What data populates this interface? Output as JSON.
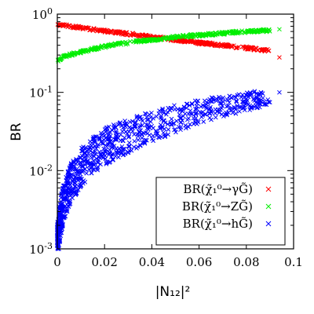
{
  "chart_data": {
    "type": "scatter",
    "xlabel": "|N₁₂|²",
    "ylabel": "BR",
    "xlim": [
      0,
      0.1
    ],
    "ylim": [
      0.001,
      1
    ],
    "yscale": "log",
    "grid": false,
    "legend_placement": "bottom-right",
    "x_ticks": [
      "0",
      "0.02",
      "0.04",
      "0.06",
      "0.08",
      "0.1"
    ],
    "y_ticks": [
      "10-3",
      "10-2",
      "10-1",
      "100"
    ],
    "series": [
      {
        "name": "BR(χ̃₁⁰→γG̃)",
        "color": "#ff0000",
        "marker": "x",
        "band": true,
        "x": [
          0.0005,
          0.002,
          0.005,
          0.01,
          0.015,
          0.02,
          0.025,
          0.03,
          0.035,
          0.04,
          0.045,
          0.05,
          0.055,
          0.06,
          0.065,
          0.07,
          0.075,
          0.08,
          0.085,
          0.09,
          0.094
        ],
        "y": [
          0.74,
          0.72,
          0.7,
          0.67,
          0.64,
          0.61,
          0.585,
          0.56,
          0.535,
          0.51,
          0.49,
          0.47,
          0.45,
          0.43,
          0.415,
          0.4,
          0.385,
          0.37,
          0.355,
          0.34,
          0.28
        ]
      },
      {
        "name": "BR(χ̃₁⁰→ZG̃)",
        "color": "#00ee00",
        "marker": "x",
        "band": true,
        "x": [
          0.0005,
          0.002,
          0.005,
          0.01,
          0.015,
          0.02,
          0.025,
          0.03,
          0.035,
          0.04,
          0.045,
          0.05,
          0.055,
          0.06,
          0.065,
          0.07,
          0.075,
          0.08,
          0.085,
          0.09,
          0.094
        ],
        "y": [
          0.26,
          0.28,
          0.3,
          0.33,
          0.36,
          0.385,
          0.41,
          0.43,
          0.45,
          0.47,
          0.49,
          0.51,
          0.525,
          0.54,
          0.555,
          0.57,
          0.585,
          0.6,
          0.61,
          0.62,
          0.64
        ]
      },
      {
        "name": "BR(χ̃₁⁰→hG̃)",
        "color": "#0000ff",
        "marker": "x",
        "band": true,
        "x": [
          0.0003,
          0.001,
          0.002,
          0.004,
          0.006,
          0.008,
          0.01,
          0.015,
          0.02,
          0.025,
          0.03,
          0.035,
          0.04,
          0.045,
          0.05,
          0.055,
          0.06,
          0.065,
          0.07,
          0.075,
          0.08,
          0.085,
          0.09,
          0.094
        ],
        "y": [
          0.0012,
          0.002,
          0.003,
          0.005,
          0.007,
          0.009,
          0.011,
          0.015,
          0.02,
          0.024,
          0.028,
          0.032,
          0.036,
          0.041,
          0.046,
          0.051,
          0.056,
          0.061,
          0.066,
          0.071,
          0.076,
          0.082,
          0.088,
          0.1
        ]
      }
    ]
  }
}
